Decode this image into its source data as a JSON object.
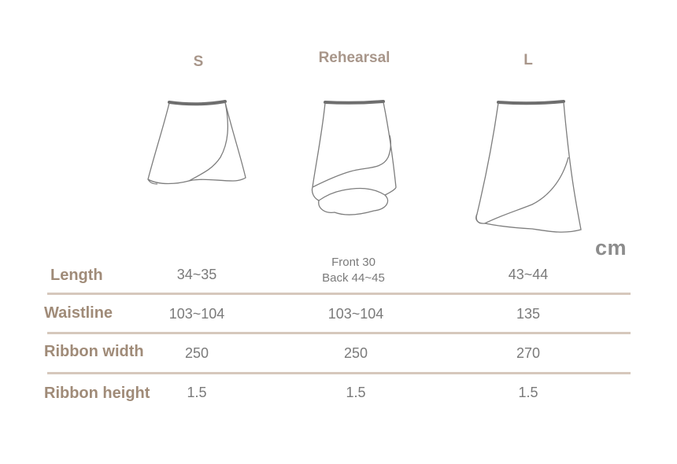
{
  "unit_label": "cm",
  "columns": [
    "S",
    "Rehearsal",
    "L"
  ],
  "rows": [
    {
      "label": "Length",
      "values": [
        "34~35",
        [
          "Front 30",
          "Back 44~45"
        ],
        "43~44"
      ]
    },
    {
      "label": "Waistline",
      "values": [
        "103~104",
        "103~104",
        "135"
      ]
    },
    {
      "label": "Ribbon width",
      "values": [
        "250",
        "250",
        "270"
      ]
    },
    {
      "label": "Ribbon height",
      "values": [
        "1.5",
        "1.5",
        "1.5"
      ]
    }
  ],
  "colors": {
    "header_text": "#a8968a",
    "row_label_text": "#a08b78",
    "value_text": "#7a7a7a",
    "divider": "#d6c8bc",
    "unit_text": "#8c8c8c"
  },
  "icons": [
    "skirt-small-icon",
    "skirt-rehearsal-icon",
    "skirt-large-icon"
  ]
}
